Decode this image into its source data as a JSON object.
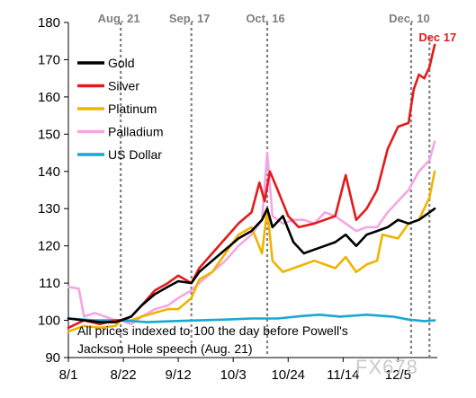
{
  "chart_data": {
    "type": "line",
    "ylim": [
      90,
      180
    ],
    "yticks": [
      90,
      100,
      110,
      120,
      130,
      140,
      150,
      160,
      170,
      180
    ],
    "x_days_range": [
      0,
      141
    ],
    "xticks": [
      {
        "label": "8/1",
        "day": 0
      },
      {
        "label": "8/22",
        "day": 21
      },
      {
        "label": "9/12",
        "day": 42
      },
      {
        "label": "10/3",
        "day": 63
      },
      {
        "label": "10/24",
        "day": 84
      },
      {
        "label": "11/14",
        "day": 105
      },
      {
        "label": "12/5",
        "day": 126
      }
    ],
    "events": [
      {
        "label": "Aug. 21",
        "day": 20,
        "color": "#7f7f7f"
      },
      {
        "label": "Sep. 17",
        "day": 47,
        "color": "#7f7f7f"
      },
      {
        "label": "Oct. 16",
        "day": 76,
        "color": "#7f7f7f"
      },
      {
        "label": "Dec. 10",
        "day": 131,
        "color": "#7f7f7f"
      },
      {
        "label": "Dec 17",
        "day": 138,
        "color": "#e41a1c"
      }
    ],
    "note_lines": [
      "All prices indexed to 100 the day before Powell's",
      "Jackson Hole speech (Aug. 21)"
    ],
    "series": [
      {
        "name": "Gold",
        "color": "#000000",
        "points": [
          [
            0,
            100.5
          ],
          [
            6,
            100
          ],
          [
            12,
            99.5
          ],
          [
            18,
            99.5
          ],
          [
            20,
            100
          ],
          [
            24,
            101
          ],
          [
            28,
            104
          ],
          [
            33,
            107
          ],
          [
            38,
            109
          ],
          [
            42,
            110.5
          ],
          [
            47,
            110
          ],
          [
            50,
            113
          ],
          [
            55,
            116
          ],
          [
            60,
            119
          ],
          [
            65,
            122
          ],
          [
            70,
            124
          ],
          [
            74,
            127
          ],
          [
            76,
            130
          ],
          [
            78,
            125
          ],
          [
            82,
            128
          ],
          [
            86,
            121
          ],
          [
            90,
            118
          ],
          [
            94,
            119
          ],
          [
            98,
            120
          ],
          [
            102,
            121
          ],
          [
            106,
            123
          ],
          [
            110,
            120
          ],
          [
            114,
            123
          ],
          [
            118,
            124
          ],
          [
            122,
            125
          ],
          [
            126,
            127
          ],
          [
            130,
            126
          ],
          [
            134,
            127
          ],
          [
            138,
            129
          ],
          [
            140,
            130
          ]
        ]
      },
      {
        "name": "Silver",
        "color": "#e41a1c",
        "points": [
          [
            0,
            98
          ],
          [
            6,
            100
          ],
          [
            12,
            99
          ],
          [
            18,
            100
          ],
          [
            20,
            100
          ],
          [
            24,
            101
          ],
          [
            28,
            104
          ],
          [
            33,
            108
          ],
          [
            38,
            110
          ],
          [
            42,
            112
          ],
          [
            47,
            110
          ],
          [
            50,
            114
          ],
          [
            55,
            118
          ],
          [
            60,
            122
          ],
          [
            65,
            126
          ],
          [
            70,
            129
          ],
          [
            73,
            137
          ],
          [
            75,
            132
          ],
          [
            77,
            140
          ],
          [
            80,
            135
          ],
          [
            84,
            128
          ],
          [
            88,
            125
          ],
          [
            94,
            126
          ],
          [
            98,
            127
          ],
          [
            102,
            128
          ],
          [
            106,
            139
          ],
          [
            108,
            133
          ],
          [
            110,
            127
          ],
          [
            114,
            130
          ],
          [
            118,
            135
          ],
          [
            122,
            146
          ],
          [
            126,
            152
          ],
          [
            130,
            153
          ],
          [
            132,
            162
          ],
          [
            134,
            166
          ],
          [
            136,
            165
          ],
          [
            138,
            168
          ],
          [
            140,
            174
          ]
        ]
      },
      {
        "name": "Platinum",
        "color": "#f0b400",
        "points": [
          [
            0,
            97
          ],
          [
            6,
            98.5
          ],
          [
            12,
            98
          ],
          [
            18,
            98.5
          ],
          [
            20,
            100
          ],
          [
            24,
            100
          ],
          [
            28,
            101
          ],
          [
            33,
            102
          ],
          [
            38,
            103
          ],
          [
            42,
            103
          ],
          [
            47,
            106
          ],
          [
            50,
            111
          ],
          [
            55,
            113
          ],
          [
            60,
            118
          ],
          [
            65,
            123
          ],
          [
            70,
            125
          ],
          [
            74,
            118
          ],
          [
            76,
            130
          ],
          [
            78,
            116
          ],
          [
            82,
            113
          ],
          [
            86,
            114
          ],
          [
            90,
            115
          ],
          [
            94,
            116
          ],
          [
            98,
            115
          ],
          [
            102,
            114
          ],
          [
            106,
            117
          ],
          [
            110,
            113
          ],
          [
            114,
            115
          ],
          [
            118,
            116
          ],
          [
            120,
            123
          ],
          [
            126,
            122
          ],
          [
            130,
            126
          ],
          [
            134,
            127
          ],
          [
            138,
            133
          ],
          [
            140,
            140
          ]
        ]
      },
      {
        "name": "Palladium",
        "color": "#f4a6e4",
        "points": [
          [
            0,
            109
          ],
          [
            4,
            108.5
          ],
          [
            6,
            101
          ],
          [
            10,
            102
          ],
          [
            14,
            101
          ],
          [
            18,
            100
          ],
          [
            20,
            100
          ],
          [
            24,
            99
          ],
          [
            28,
            101
          ],
          [
            33,
            103
          ],
          [
            38,
            104
          ],
          [
            42,
            106
          ],
          [
            47,
            108
          ],
          [
            50,
            110
          ],
          [
            55,
            113
          ],
          [
            60,
            116
          ],
          [
            65,
            120
          ],
          [
            70,
            123
          ],
          [
            74,
            127
          ],
          [
            76,
            145
          ],
          [
            78,
            128
          ],
          [
            82,
            126
          ],
          [
            86,
            127
          ],
          [
            90,
            127
          ],
          [
            94,
            126
          ],
          [
            98,
            129
          ],
          [
            102,
            128
          ],
          [
            106,
            126
          ],
          [
            110,
            124
          ],
          [
            114,
            125
          ],
          [
            118,
            125
          ],
          [
            122,
            129
          ],
          [
            126,
            132
          ],
          [
            130,
            135
          ],
          [
            134,
            140
          ],
          [
            138,
            143
          ],
          [
            140,
            148
          ]
        ]
      },
      {
        "name": "US Dollar",
        "color": "#18a8d0",
        "points": [
          [
            0,
            100.5
          ],
          [
            10,
            100
          ],
          [
            20,
            100
          ],
          [
            30,
            99.5
          ],
          [
            40,
            99.8
          ],
          [
            50,
            100
          ],
          [
            60,
            100.2
          ],
          [
            70,
            100.5
          ],
          [
            80,
            100.5
          ],
          [
            90,
            101.2
          ],
          [
            96,
            101.5
          ],
          [
            104,
            101
          ],
          [
            114,
            101.5
          ],
          [
            124,
            101
          ],
          [
            130,
            100.2
          ],
          [
            136,
            99.8
          ],
          [
            140,
            100
          ]
        ]
      }
    ]
  }
}
